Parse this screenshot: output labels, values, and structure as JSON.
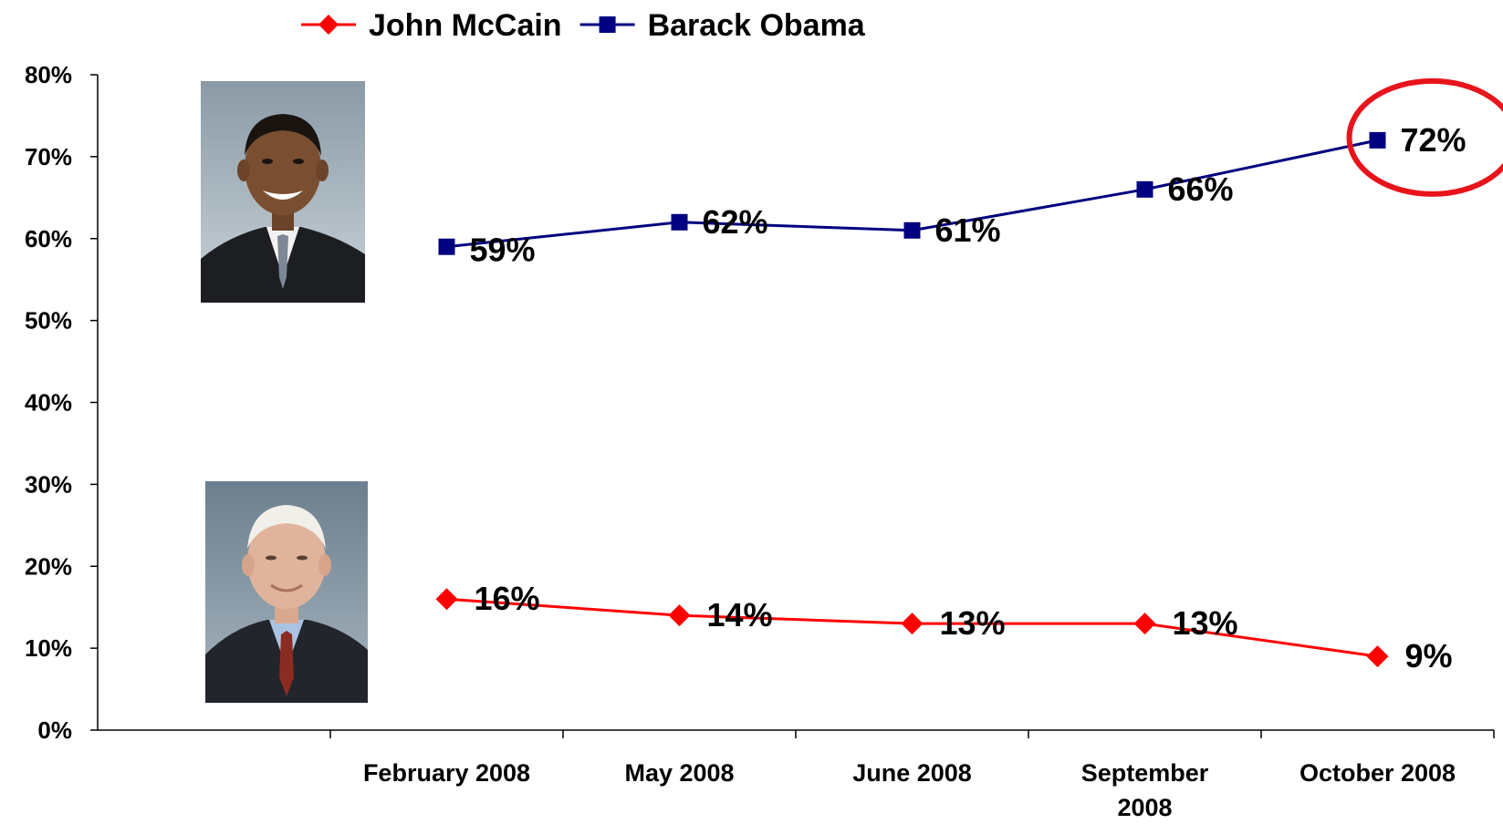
{
  "chart_data": {
    "type": "line",
    "categories": [
      "February 2008",
      "May 2008",
      "June 2008",
      "September 2008",
      "October 2008"
    ],
    "category_lines": [
      [
        "February 2008"
      ],
      [
        "May 2008"
      ],
      [
        "June 2008"
      ],
      [
        "September",
        "2008"
      ],
      [
        "October 2008"
      ]
    ],
    "series": [
      {
        "name": "John McCain",
        "values": [
          16,
          14,
          13,
          13,
          9
        ],
        "color": "#ff0000",
        "marker": "diamond",
        "labels": [
          "16%",
          "14%",
          "13%",
          "13%",
          "9%"
        ]
      },
      {
        "name": "Barack Obama",
        "values": [
          59,
          62,
          61,
          66,
          72
        ],
        "color": "#000080",
        "marker": "square",
        "labels": [
          "59%",
          "62%",
          "61%",
          "66%",
          "72%"
        ]
      }
    ],
    "ylim": [
      0,
      80
    ],
    "yticks": [
      "0%",
      "10%",
      "20%",
      "30%",
      "40%",
      "50%",
      "60%",
      "70%",
      "80%"
    ],
    "y_tick_values": [
      0,
      10,
      20,
      30,
      40,
      50,
      60,
      70,
      80
    ],
    "grid": false,
    "legend_position": "top",
    "highlight": {
      "series": "Barack Obama",
      "category": "October 2008",
      "shape": "ellipse",
      "color": "#e8141b"
    },
    "photos": [
      {
        "depicts": "Barack Obama portrait",
        "position": "upper-left"
      },
      {
        "depicts": "John McCain portrait",
        "position": "lower-left"
      }
    ]
  }
}
